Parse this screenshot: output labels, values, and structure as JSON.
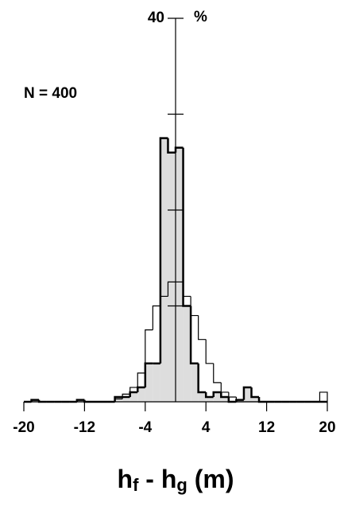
{
  "chart_data": {
    "type": "histogram",
    "annotation": "N = 400",
    "y_label": "%",
    "x_label": [
      "h",
      "f",
      " - h",
      "g",
      " (m)"
    ],
    "bins": [
      -20,
      -19,
      -18,
      -17,
      -16,
      -15,
      -14,
      -13,
      -12,
      -11,
      -10,
      -9,
      -8,
      -7,
      -6,
      -5,
      -4,
      -3,
      -2,
      -1,
      0,
      1,
      2,
      3,
      4,
      5,
      6,
      7,
      8,
      9,
      10,
      11,
      12,
      13,
      14,
      15,
      16,
      17,
      18,
      19,
      20
    ],
    "series": [
      {
        "color": "#000000",
        "fill": "#dddddd",
        "width": 2.5,
        "values": [
          0,
          0.2,
          0,
          0,
          0,
          0,
          0,
          0.2,
          0,
          0,
          0,
          0,
          0.5,
          0.5,
          1,
          1.5,
          4,
          4,
          27.5,
          26,
          26.5,
          10,
          4,
          1,
          0.5,
          1,
          0.5,
          0,
          0.2,
          1.5,
          0.5,
          0,
          0,
          0,
          0,
          0,
          0,
          0,
          0,
          0
        ]
      },
      {
        "color": "#000000",
        "fill": "none",
        "width": 1.2,
        "values": [
          0,
          0,
          0,
          0,
          0,
          0,
          0,
          0,
          0,
          0,
          0,
          0,
          0.3,
          0.8,
          1.5,
          3,
          7.5,
          10,
          11,
          12.5,
          12.5,
          11,
          9,
          6.5,
          4,
          2,
          1,
          0.5,
          0,
          0,
          0,
          0,
          0,
          0,
          0,
          0,
          0,
          0,
          0,
          1
        ]
      }
    ],
    "xlim": [
      -20,
      20
    ],
    "xticks": [
      -20,
      -12,
      -4,
      4,
      12,
      20
    ],
    "ylim": [
      0,
      40
    ],
    "yticks": [
      10,
      20,
      30,
      40
    ]
  }
}
